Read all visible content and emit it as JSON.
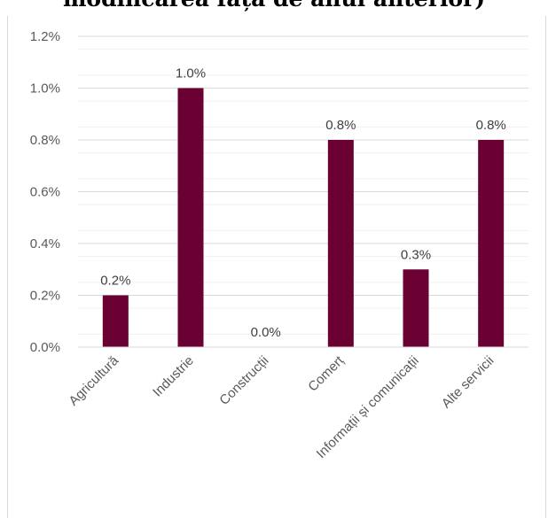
{
  "chart_data": {
    "type": "bar",
    "title": "modificarea față de anul anterior)",
    "categories": [
      "Agricultură",
      "Industrie",
      "Construcții",
      "Comerț",
      "Informații și comunicații",
      "Alte servicii"
    ],
    "values": [
      0.2,
      1.0,
      0.0,
      0.8,
      0.3,
      0.8
    ],
    "data_labels": [
      "0.2%",
      "1.0%",
      "0.0%",
      "0.8%",
      "0.3%",
      "0.8%"
    ],
    "y_ticks": [
      "0.0%",
      "0.2%",
      "0.4%",
      "0.6%",
      "0.8%",
      "1.0%",
      "1.2%"
    ],
    "ylim": [
      0,
      1.2
    ],
    "xlabel": "",
    "ylabel": "",
    "bar_color": "#6b0032",
    "grid": true,
    "legend": "none"
  }
}
